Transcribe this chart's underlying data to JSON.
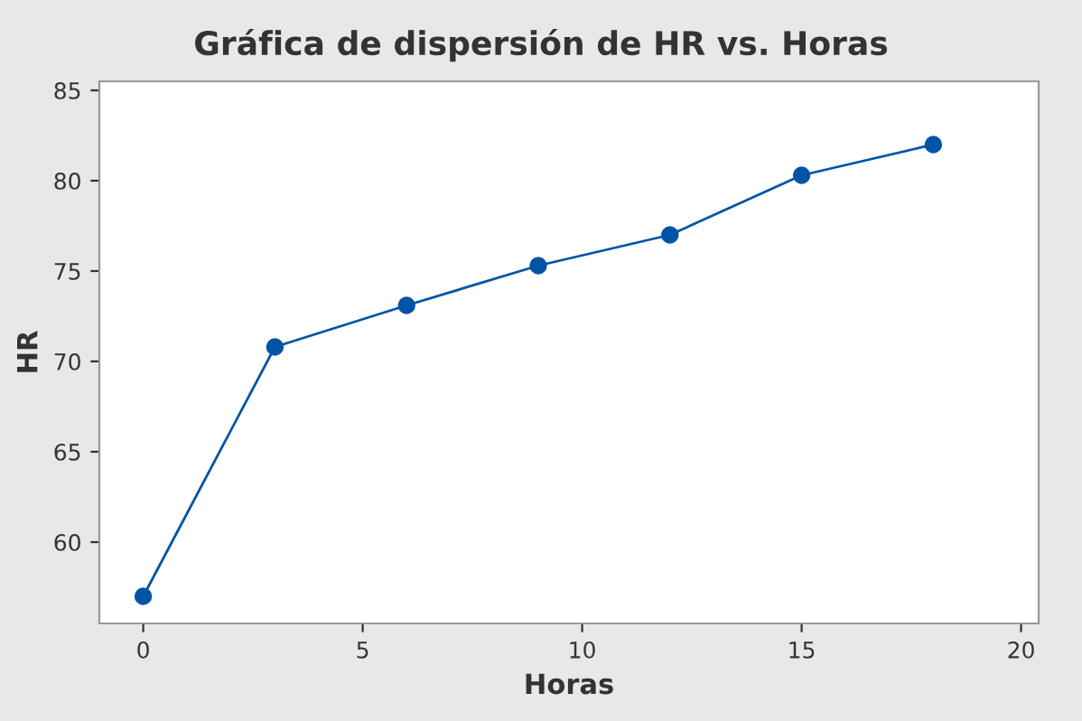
{
  "chart_data": {
    "type": "line",
    "title": "Gráfica de dispersión de HR vs. Horas",
    "xlabel": "Horas",
    "ylabel": "HR",
    "x": [
      0,
      3,
      6,
      9,
      12,
      15,
      18
    ],
    "series": [
      {
        "color": "#0054a6",
        "values": [
          57,
          70.8,
          73.1,
          75.3,
          77.0,
          80.3,
          82.0
        ]
      }
    ],
    "xlim": [
      -1,
      20.4
    ],
    "xticks": [
      0,
      5,
      10,
      15,
      20
    ],
    "ylim": [
      55.5,
      85.5
    ],
    "yticks": [
      60,
      65,
      70,
      75,
      80,
      85
    ],
    "marker": "circle",
    "line_style": "solid",
    "grid": false
  }
}
